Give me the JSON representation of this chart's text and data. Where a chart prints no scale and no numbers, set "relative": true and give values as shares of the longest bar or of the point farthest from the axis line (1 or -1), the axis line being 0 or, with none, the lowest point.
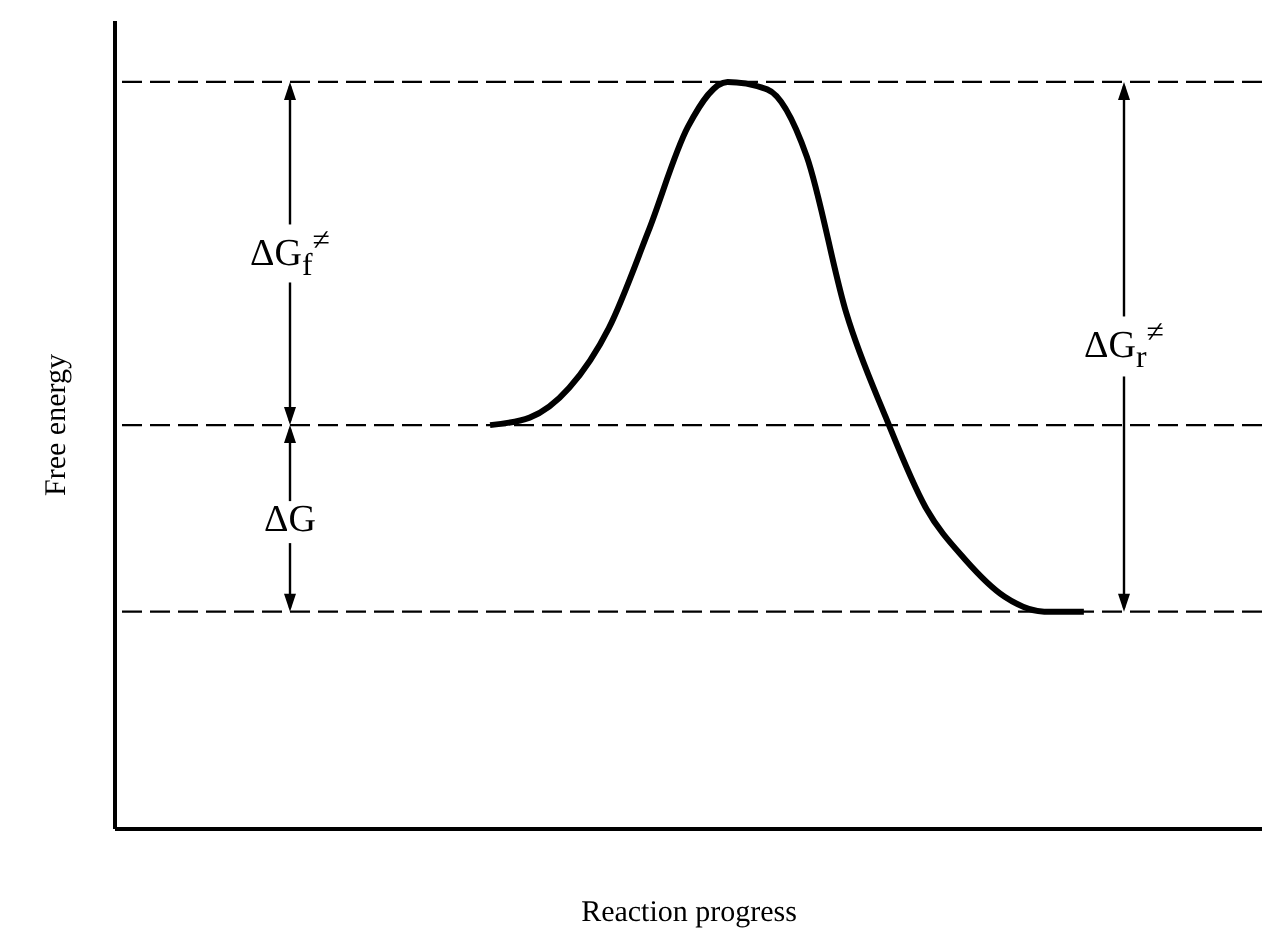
{
  "chart_data": {
    "type": "line",
    "relative": true,
    "xlabel": "Reaction progress",
    "ylabel": "Free energy",
    "categories": [
      null,
      null,
      null,
      null,
      null,
      null,
      null,
      null,
      null,
      null,
      null,
      null,
      null,
      null,
      null,
      null,
      null,
      null,
      null,
      null,
      null,
      null,
      null,
      null,
      null,
      null,
      null,
      null,
      null
    ],
    "series": [
      {
        "color": "#000000",
        "values": [
          null,
          null,
          null,
          null,
          null,
          null,
          null,
          null,
          null,
          0.54,
          0.55,
          0.59,
          0.67,
          0.8,
          0.94,
          1.0,
          0.99,
          0.9,
          0.69,
          0.55,
          0.43,
          0.36,
          0.31,
          0.29,
          0.29,
          null,
          null,
          null,
          null
        ]
      }
    ],
    "ref_lines": [
      {
        "axis": "y",
        "value": 1.0,
        "color": "#000000",
        "line_style": "dashed"
      },
      {
        "axis": "y",
        "value": 0.54,
        "color": "#000000",
        "line_style": "dashed"
      },
      {
        "axis": "y",
        "value": 0.29,
        "color": "#000000",
        "line_style": "dashed"
      }
    ],
    "annotations": [
      {
        "text": "ΔG$_{f}$$^{≠}$",
        "y": 0.77
      },
      {
        "text": "ΔG",
        "y": 0.41
      },
      {
        "text": "ΔG$_{r}$$^{≠}$",
        "y": 0.645
      }
    ],
    "grid": false
  }
}
